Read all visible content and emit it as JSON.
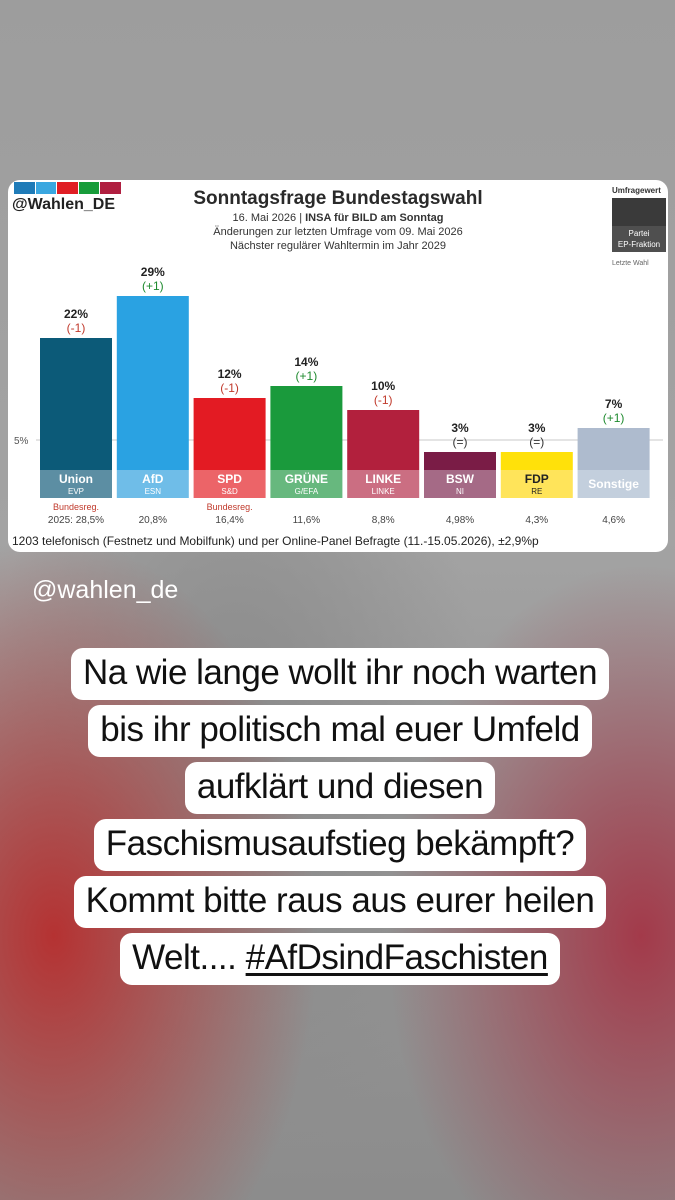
{
  "brand_colors": [
    "#1f7bb8",
    "#3aa7e0",
    "#e01e24",
    "#179c3a",
    "#b01f40"
  ],
  "handle": "@Wahlen_DE",
  "legend": {
    "top": "Umfragewert",
    "line1": "Partei",
    "line2": "EP-Fraktion",
    "bottom": "Letzte Wahl"
  },
  "chart_data": {
    "type": "bar",
    "title": "Sonntagsfrage Bundestagswahl",
    "subtitle_date": "16. Mai 2026",
    "subtitle_source": "INSA für BILD am Sonntag",
    "subtitle_change": "Änderungen zur letzten Umfrage vom 09. Mai 2026",
    "subtitle_next": "Nächster regulärer Wahltermin im Jahr 2029",
    "threshold_label": "5%",
    "threshold": 5,
    "ylim": [
      0,
      29
    ],
    "categories": [
      "Union",
      "AfD",
      "SPD",
      "GRÜNE",
      "LINKE",
      "BSW",
      "FDP",
      "Sonstige"
    ],
    "ep_groups": [
      "EVP",
      "ESN",
      "S&D",
      "G/EFA",
      "LINKE",
      "NI",
      "RE",
      ""
    ],
    "values": [
      22,
      29,
      12,
      14,
      10,
      3,
      3,
      7
    ],
    "value_labels": [
      "22%",
      "29%",
      "12%",
      "14%",
      "10%",
      "3%",
      "3%",
      "7%"
    ],
    "changes": [
      "(-1)",
      "(+1)",
      "(-1)",
      "(+1)",
      "(-1)",
      "(=)",
      "(=)",
      "(+1)"
    ],
    "last_election": [
      "2025: 28,5%",
      "20,8%",
      "16,4%",
      "11,6%",
      "8,8%",
      "4,98%",
      "4,3%",
      "4,6%"
    ],
    "gov_label": "Bundesreg.",
    "government": [
      true,
      false,
      true,
      false,
      false,
      false,
      false,
      false
    ],
    "bar_colors": [
      "#0c5a78",
      "#2aa2e2",
      "#e31b23",
      "#1a9a3c",
      "#b2203d",
      "#7a1c46",
      "#ffe10a",
      "#aebbce"
    ],
    "label_colors": [
      "#5c8ea3",
      "#6fbde8",
      "#ec6468",
      "#67b87e",
      "#cb6e82",
      "#a56a86",
      "#ffe45a",
      "#c3cfdd"
    ],
    "label_text_colors": [
      "#ffffff",
      "#ffffff",
      "#ffffff",
      "#ffffff",
      "#ffffff",
      "#ffffff",
      "#222222",
      "#ffffff"
    ],
    "change_colors": [
      "#c0392b",
      "#1e8a2e",
      "#c0392b",
      "#1e8a2e",
      "#c0392b",
      "#333333",
      "#333333",
      "#1e8a2e"
    ]
  },
  "footnote": "1203 telefonisch (Festnetz und Mobilfunk) und per Online-Panel Befragte (11.-15.05.2026), ±2,9%p",
  "watermark": "@wahlen_de",
  "message": {
    "lines": [
      "Na wie lange wollt ihr noch warten",
      "bis ihr politisch mal euer Umfeld",
      "aufklärt und diesen",
      "Faschismusaufstieg bekämpft?",
      "Kommt bitte raus aus eurer heilen"
    ],
    "last_line_text": "Welt.... ",
    "hashtag": "#AfDsindFaschisten"
  }
}
